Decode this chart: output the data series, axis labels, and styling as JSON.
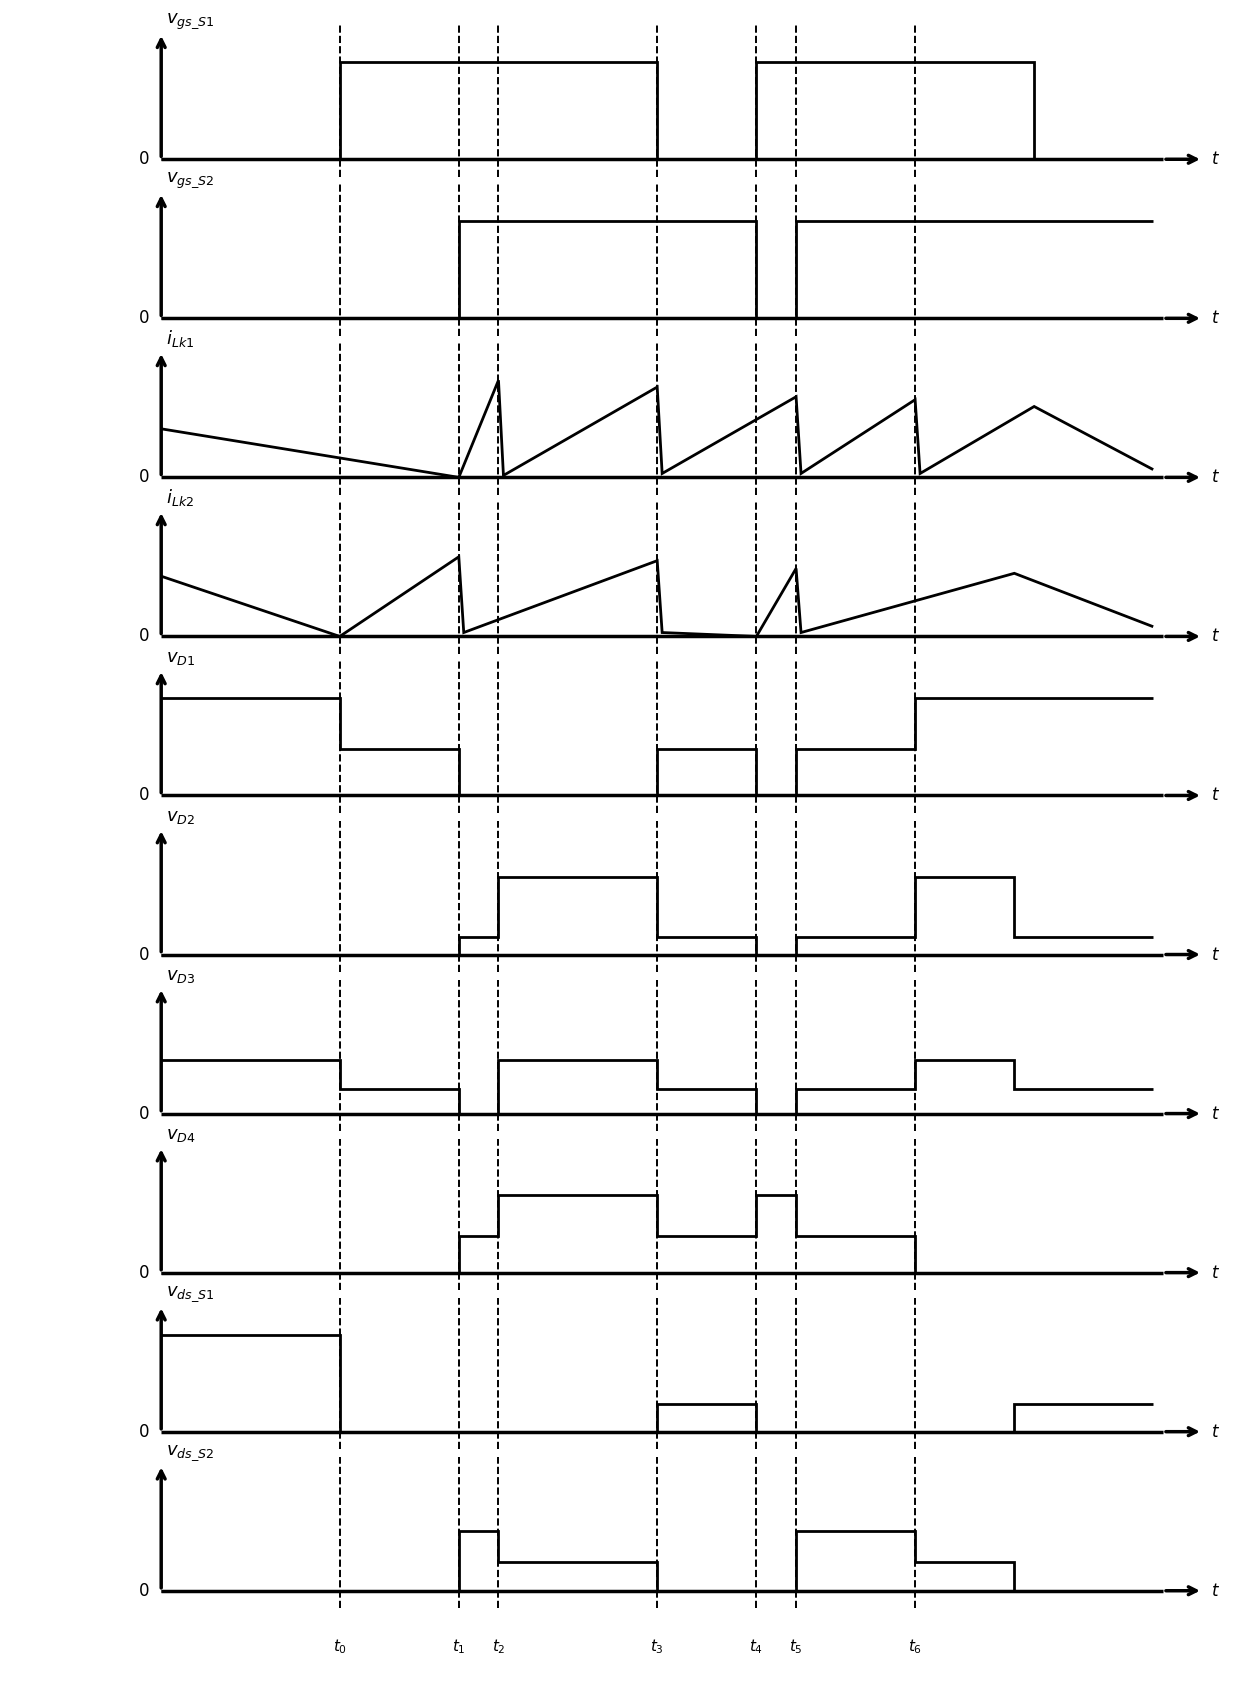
{
  "time_points": {
    "t0": 0.18,
    "t1": 0.3,
    "t2": 0.34,
    "t3": 0.5,
    "t4": 0.6,
    "t5": 0.64,
    "t6": 0.76
  },
  "xlim": [
    0.0,
    1.05
  ],
  "background_color": "#ffffff",
  "line_color": "#000000",
  "zero_label_fontsize": 12,
  "ylabel_fontsize": 13,
  "subplot_labels": [
    "$v_{gs\\_S1}$",
    "$v_{gs\\_S2}$",
    "$i_{Lk1}$",
    "$i_{Lk2}$",
    "$v_{D1}$",
    "$v_{D2}$",
    "$v_{D3}$",
    "$v_{D4}$",
    "$v_{ds\\_S1}$",
    "$v_{ds\\_S2}$"
  ],
  "dashed_time_labels": [
    "$t_0$",
    "$t_1$",
    "$t_2$",
    "$t_3$",
    "$t_4$",
    "$t_5$",
    "$t_6$"
  ]
}
